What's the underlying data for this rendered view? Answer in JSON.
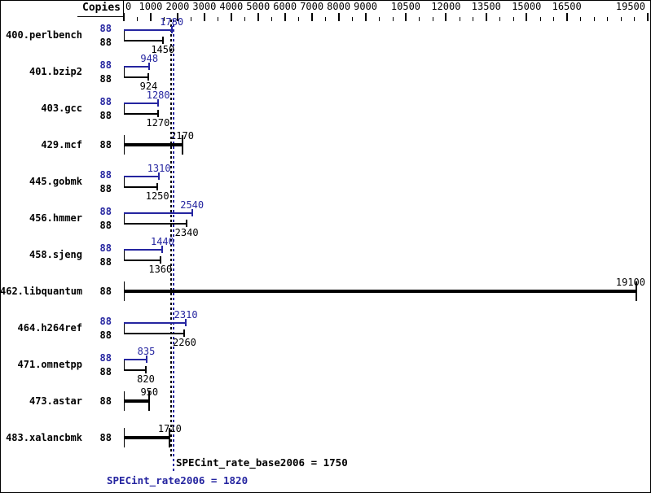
{
  "header": {
    "copies_label": "Copies"
  },
  "colors": {
    "peak_blue": "#2525a0",
    "base_black": "#000000"
  },
  "axis": {
    "labeled_ticks": [
      0,
      1000,
      2000,
      3000,
      4000,
      5000,
      6000,
      7000,
      8000,
      9000,
      10500,
      12000,
      13500,
      15000,
      16500,
      19500
    ],
    "minor_tick_step": 500,
    "max_tick": 19500
  },
  "benchmarks": [
    {
      "name": "400.perlbench",
      "copies": "88",
      "peak": 1780,
      "base": 1450
    },
    {
      "name": "401.bzip2",
      "copies": "88",
      "peak": 948,
      "base": 924
    },
    {
      "name": "403.gcc",
      "copies": "88",
      "peak": 1280,
      "base": 1270
    },
    {
      "name": "429.mcf",
      "copies": "88",
      "peak": null,
      "base": 2170
    },
    {
      "name": "445.gobmk",
      "copies": "88",
      "peak": 1310,
      "base": 1250
    },
    {
      "name": "456.hmmer",
      "copies": "88",
      "peak": 2540,
      "base": 2340
    },
    {
      "name": "458.sjeng",
      "copies": "88",
      "peak": 1440,
      "base": 1360
    },
    {
      "name": "462.libquantum",
      "copies": "88",
      "peak": null,
      "base": 19100
    },
    {
      "name": "464.h264ref",
      "copies": "88",
      "peak": 2310,
      "base": 2260
    },
    {
      "name": "471.omnetpp",
      "copies": "88",
      "peak": 835,
      "base": 820
    },
    {
      "name": "473.astar",
      "copies": "88",
      "peak": null,
      "base": 950
    },
    {
      "name": "483.xalancbmk",
      "copies": "88",
      "peak": null,
      "base": 1710
    }
  ],
  "reference_lines": {
    "base_value": 1750,
    "peak_value": 1820
  },
  "summary": {
    "base_text": "SPECint_rate_base2006 = 1750",
    "peak_text": "SPECint_rate2006 = 1820"
  },
  "chart_data": {
    "type": "bar",
    "orientation": "horizontal",
    "title": "",
    "xlabel": "",
    "ylabel": "Copies",
    "xlim": [
      0,
      19600
    ],
    "grid": false,
    "x_tick_labels": [
      0,
      1000,
      2000,
      3000,
      4000,
      5000,
      6000,
      7000,
      8000,
      9000,
      10500,
      12000,
      13500,
      15000,
      16500,
      19500
    ],
    "minor_tick_step": 500,
    "categories": [
      "400.perlbench",
      "401.bzip2",
      "403.gcc",
      "429.mcf",
      "445.gobmk",
      "456.hmmer",
      "458.sjeng",
      "462.libquantum",
      "464.h264ref",
      "471.omnetpp",
      "473.astar",
      "483.xalancbmk"
    ],
    "series": [
      {
        "name": "Copies",
        "values": [
          88,
          88,
          88,
          88,
          88,
          88,
          88,
          88,
          88,
          88,
          88,
          88
        ]
      },
      {
        "name": "SPECint_rate2006 (peak)",
        "color": "#2525a0",
        "values": [
          1780,
          948,
          1280,
          null,
          1310,
          2540,
          1440,
          null,
          2310,
          835,
          null,
          null
        ]
      },
      {
        "name": "SPECint_rate_base2006 (base)",
        "color": "#000000",
        "values": [
          1450,
          924,
          1270,
          2170,
          1250,
          2340,
          1360,
          19100,
          2260,
          820,
          950,
          1710
        ]
      }
    ],
    "reference_lines": [
      {
        "label": "SPECint_rate_base2006",
        "value": 1750,
        "color": "#000000",
        "style": "dotted"
      },
      {
        "label": "SPECint_rate2006",
        "value": 1820,
        "color": "#2525a0",
        "style": "dotted"
      }
    ],
    "annotations": [
      "SPECint_rate_base2006 = 1750",
      "SPECint_rate2006 = 1820"
    ]
  }
}
